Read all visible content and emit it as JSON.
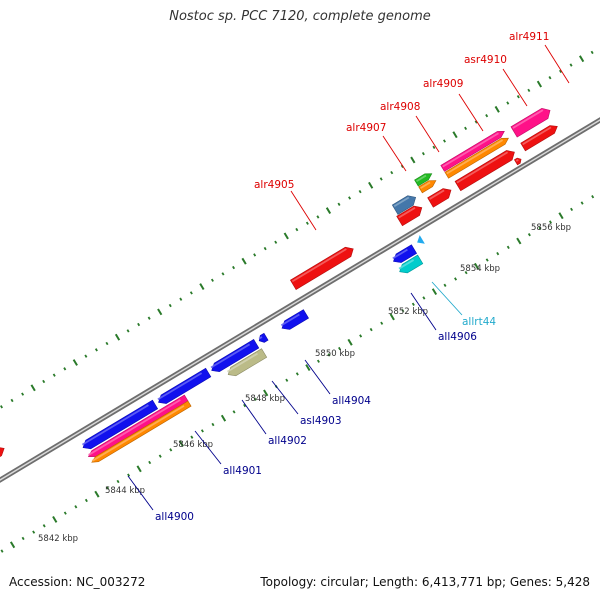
{
  "title": "Nostoc sp. PCC 7120, complete genome",
  "footer": {
    "accession": "Accession: NC_003272",
    "summary": "Topology: circular; Length: 6,413,771 bp; Genes: 5,428"
  },
  "colors": {
    "backbone": "#8a8a8a",
    "tick": "#2a7a2a",
    "forward_label": "#dd0000",
    "reverse_label": "#00008b",
    "rna_label": "#22aacc"
  },
  "kbp_labels": [
    "5842 kbp",
    "5844 kbp",
    "5846 kbp",
    "5848 kbp",
    "5850 kbp",
    "5852 kbp",
    "5854 kbp",
    "5856 kbp"
  ],
  "genes": [
    {
      "label": "alr4905",
      "strand": "forward"
    },
    {
      "label": "alr4907",
      "strand": "forward"
    },
    {
      "label": "alr4908",
      "strand": "forward"
    },
    {
      "label": "alr4909",
      "strand": "forward"
    },
    {
      "label": "asr4910",
      "strand": "forward"
    },
    {
      "label": "alr4911",
      "strand": "forward"
    },
    {
      "label": "all4900",
      "strand": "reverse"
    },
    {
      "label": "all4901",
      "strand": "reverse"
    },
    {
      "label": "all4902",
      "strand": "reverse"
    },
    {
      "label": "asl4903",
      "strand": "reverse"
    },
    {
      "label": "all4904",
      "strand": "reverse"
    },
    {
      "label": "all4906",
      "strand": "reverse"
    },
    {
      "label": "allrt44",
      "strand": "reverse"
    }
  ]
}
